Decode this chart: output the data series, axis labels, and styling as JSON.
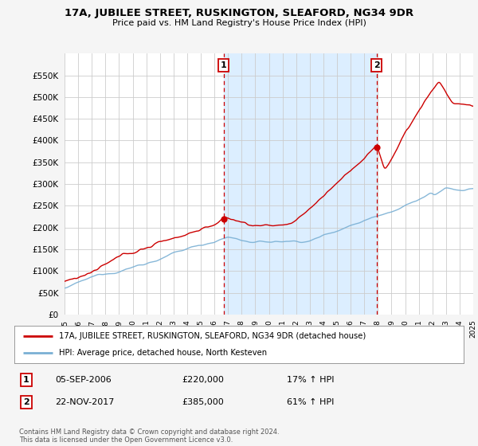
{
  "title": "17A, JUBILEE STREET, RUSKINGTON, SLEAFORD, NG34 9DR",
  "subtitle": "Price paid vs. HM Land Registry's House Price Index (HPI)",
  "ylim": [
    0,
    600000
  ],
  "yticks": [
    0,
    50000,
    100000,
    150000,
    200000,
    250000,
    300000,
    350000,
    400000,
    450000,
    500000,
    550000
  ],
  "x_start_year": 1995,
  "x_end_year": 2025,
  "sale1_date": 2006.68,
  "sale1_price": 220000,
  "sale1_label": "1",
  "sale2_date": 2017.9,
  "sale2_price": 385000,
  "sale2_label": "2",
  "annotation1_date": "05-SEP-2006",
  "annotation1_price": "£220,000",
  "annotation1_hpi": "17% ↑ HPI",
  "annotation2_date": "22-NOV-2017",
  "annotation2_price": "£385,000",
  "annotation2_hpi": "61% ↑ HPI",
  "legend_line1": "17A, JUBILEE STREET, RUSKINGTON, SLEAFORD, NG34 9DR (detached house)",
  "legend_line2": "HPI: Average price, detached house, North Kesteven",
  "copyright_text": "Contains HM Land Registry data © Crown copyright and database right 2024.\nThis data is licensed under the Open Government Licence v3.0.",
  "line_color_red": "#cc0000",
  "line_color_blue": "#7ab0d4",
  "shading_color": "#dceeff",
  "background_color": "#f5f5f5",
  "plot_bg_color": "#ffffff",
  "grid_color": "#cccccc",
  "dashed_line_color": "#cc0000"
}
